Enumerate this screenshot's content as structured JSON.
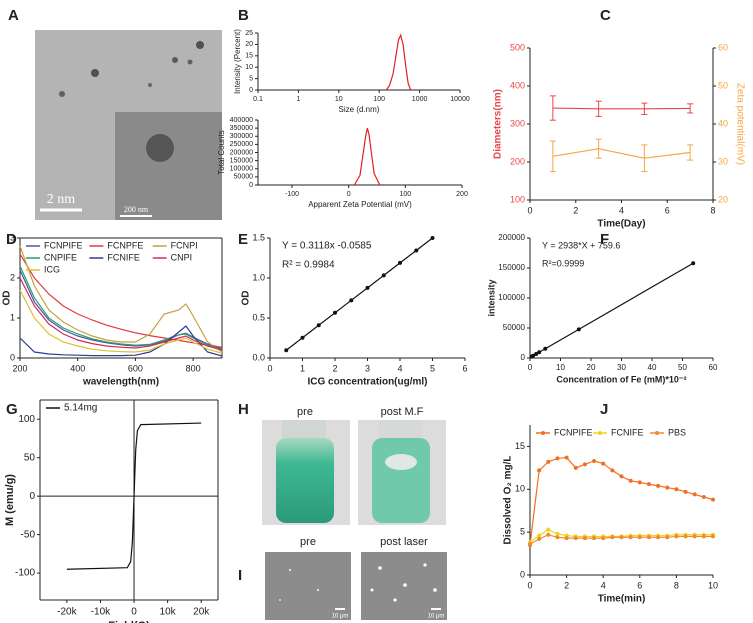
{
  "panel_labels": [
    "A",
    "B",
    "C",
    "D",
    "E",
    "F",
    "G",
    "H",
    "I",
    "J"
  ],
  "images": {
    "A": {
      "scale_bar": "2 nm",
      "inset_scale_bar": "200 nm"
    },
    "H": {
      "labels": [
        "pre",
        "post M.F"
      ]
    },
    "I": {
      "labels": [
        "pre",
        "post laser"
      ],
      "scale_bars": [
        "10 μm",
        "10 μm"
      ]
    }
  },
  "chart_data": [
    {
      "type": "line",
      "xlabel": "Size (d.nm)",
      "ylabel": "Intensity (Percent)",
      "xscale": "log",
      "xlim": [
        0.1,
        10000
      ],
      "xticks": [
        0.1,
        1,
        10,
        100,
        1000,
        10000
      ],
      "ylim": [
        0,
        25
      ],
      "yticks": [
        0,
        5,
        10,
        15,
        20,
        25
      ],
      "frame": "open",
      "series": [
        {
          "color": "#e02020",
          "x": [
            150,
            180,
            220,
            260,
            300,
            340,
            390,
            450,
            520,
            600
          ],
          "values": [
            0,
            2,
            7,
            15,
            22,
            24,
            20,
            11,
            3,
            0
          ]
        }
      ]
    },
    {
      "type": "line",
      "xlabel": "Apparent Zeta Potential (mV)",
      "ylabel": "Total Counts",
      "xlim": [
        -160,
        200
      ],
      "xticks": [
        -100,
        0,
        100,
        200
      ],
      "ylim": [
        0,
        400000
      ],
      "yticks": [
        0,
        50000,
        100000,
        150000,
        200000,
        250000,
        300000,
        350000,
        400000
      ],
      "frame": "open",
      "series": [
        {
          "color": "#e02020",
          "x": [
            10,
            20,
            25,
            30,
            33,
            36,
            40,
            45,
            55
          ],
          "values": [
            0,
            60000,
            180000,
            300000,
            350000,
            310000,
            200000,
            70000,
            0
          ]
        }
      ]
    },
    {
      "type": "line",
      "xlabel": "Time(Day)",
      "ylabel": "Diameters(nm)",
      "y2label": "Zeta potential(mV)",
      "xlim": [
        0,
        8
      ],
      "xticks": [
        0,
        2,
        4,
        6,
        8
      ],
      "ylim": [
        100,
        500
      ],
      "yticks": [
        100,
        200,
        300,
        400,
        500
      ],
      "y2lim": [
        20,
        60
      ],
      "y2ticks": [
        20,
        30,
        40,
        50,
        60
      ],
      "frame": "open",
      "x": [
        1,
        3,
        5,
        7
      ],
      "series": [
        {
          "color": "#e8474a",
          "values": [
            342,
            340,
            340,
            341
          ],
          "errors": [
            32,
            20,
            15,
            12
          ]
        },
        {
          "color": "#f5a742",
          "axis": "y2",
          "values": [
            31.5,
            33.5,
            31,
            32.5
          ],
          "errors": [
            4,
            2.5,
            3.5,
            2
          ]
        }
      ]
    },
    {
      "type": "line",
      "xlabel": "wavelength(nm)",
      "ylabel": "OD",
      "xlim": [
        200,
        900
      ],
      "xticks": [
        200,
        400,
        600,
        800
      ],
      "ylim": [
        0,
        3
      ],
      "yticks": [
        0,
        1,
        2,
        3
      ],
      "frame": "box",
      "legend": "upper center",
      "legend_columns": 3,
      "x": [
        200,
        250,
        300,
        350,
        400,
        450,
        500,
        550,
        600,
        650,
        700,
        725,
        750,
        775,
        800,
        850,
        900
      ],
      "series": [
        {
          "name": "FCNPIFE",
          "color": "#4a5aa0",
          "values": [
            2.2,
            1.4,
            0.95,
            0.7,
            0.55,
            0.45,
            0.38,
            0.33,
            0.3,
            0.33,
            0.42,
            0.5,
            0.58,
            0.62,
            0.52,
            0.35,
            0.25
          ]
        },
        {
          "name": "FCNPFE",
          "color": "#e03a3a",
          "values": [
            2.6,
            2.0,
            1.6,
            1.3,
            1.1,
            0.95,
            0.82,
            0.72,
            0.63,
            0.56,
            0.5,
            0.47,
            0.44,
            0.41,
            0.38,
            0.32,
            0.27
          ]
        },
        {
          "name": "FCNPI",
          "color": "#c8a040",
          "values": [
            2.8,
            1.8,
            1.2,
            0.9,
            0.7,
            0.55,
            0.45,
            0.4,
            0.4,
            0.6,
            1.1,
            1.15,
            1.2,
            1.35,
            1.05,
            0.4,
            0.15
          ]
        },
        {
          "name": "CNPIFE",
          "color": "#2e9a6e",
          "values": [
            2.3,
            1.5,
            1.0,
            0.75,
            0.6,
            0.48,
            0.4,
            0.35,
            0.32,
            0.34,
            0.45,
            0.52,
            0.58,
            0.6,
            0.5,
            0.33,
            0.22
          ]
        },
        {
          "name": "FCNIFE",
          "color": "#2a3e9a",
          "values": [
            0.5,
            0.15,
            0.1,
            0.08,
            0.07,
            0.06,
            0.06,
            0.06,
            0.07,
            0.15,
            0.35,
            0.5,
            0.65,
            0.8,
            0.55,
            0.15,
            0.05
          ]
        },
        {
          "name": "CNPI",
          "color": "#d2285a",
          "values": [
            2.0,
            1.3,
            0.85,
            0.6,
            0.45,
            0.36,
            0.3,
            0.27,
            0.25,
            0.3,
            0.4,
            0.45,
            0.5,
            0.55,
            0.45,
            0.3,
            0.2
          ]
        },
        {
          "name": "ICG",
          "color": "#e0c030",
          "values": [
            1.7,
            1.0,
            0.6,
            0.4,
            0.3,
            0.22,
            0.18,
            0.16,
            0.15,
            0.2,
            0.35,
            0.4,
            0.45,
            0.5,
            0.4,
            0.22,
            0.12
          ]
        }
      ]
    },
    {
      "type": "line",
      "xlabel": "ICG concentration(ug/ml)",
      "ylabel": "OD",
      "xlim": [
        0,
        6
      ],
      "xticks": [
        0,
        1,
        2,
        3,
        4,
        5,
        6
      ],
      "ylim": [
        0,
        1.5
      ],
      "yticks": [
        {
          "value": 0,
          "label": "0.0"
        },
        0.5,
        {
          "value": 1,
          "label": "1.0"
        },
        1.5
      ],
      "frame": "open",
      "markers": true,
      "annotations": [
        "Y = 0.3118x -0.0585",
        "R² = 0.9984"
      ],
      "x": [
        0.5,
        1,
        1.5,
        2,
        2.5,
        3,
        3.5,
        4,
        4.5,
        5
      ],
      "series": [
        {
          "color": "#111111",
          "values": [
            0.097,
            0.253,
            0.409,
            0.565,
            0.721,
            0.877,
            1.033,
            1.189,
            1.344,
            1.5
          ]
        }
      ]
    },
    {
      "type": "line",
      "xlabel": "Concentration of Fe (mM)*10⁻²",
      "ylabel": "intensity",
      "xlim": [
        0,
        60
      ],
      "xticks": [
        0,
        10,
        20,
        30,
        40,
        50,
        60
      ],
      "ylim": [
        0,
        200000
      ],
      "yticks": [
        0,
        50000,
        100000,
        150000,
        200000
      ],
      "frame": "open",
      "markers": true,
      "annotations": [
        "Y = 2938*X + 759.6",
        "R²=0.9999"
      ],
      "x": [
        0.5,
        1,
        2,
        3,
        5,
        16,
        53.5
      ],
      "series": [
        {
          "color": "#111111",
          "values": [
            2229,
            3698,
            6636,
            9574,
            15450,
            47768,
            157943
          ]
        }
      ]
    },
    {
      "type": "line",
      "xlabel": "Field(G)",
      "ylabel": "M (emu/g)",
      "xlim": [
        -28000,
        25000
      ],
      "xticks": [
        {
          "value": -20000,
          "label": "-20k"
        },
        {
          "value": -10000,
          "label": "-10k"
        },
        0,
        {
          "value": 10000,
          "label": "10k"
        },
        {
          "value": 20000,
          "label": "20k"
        }
      ],
      "ylim": [
        -135,
        125
      ],
      "yticks": [
        -100,
        -50,
        0,
        50,
        100
      ],
      "frame": "box",
      "zero_lines": true,
      "legend": "upper left",
      "legend_columns": 1,
      "x": [
        -20000,
        -2000,
        -1000,
        -500,
        0,
        500,
        1000,
        2000,
        20000
      ],
      "series": [
        {
          "name": "5.14mg",
          "color": "#111111",
          "values": [
            -95,
            -93,
            -85,
            -60,
            0,
            60,
            85,
            93,
            95
          ]
        }
      ]
    },
    {
      "type": "line",
      "xlabel": "Time(min)",
      "ylabel": "Dissolved O₂  mg/L",
      "xlim": [
        0,
        10
      ],
      "xticks": [
        0,
        2,
        4,
        6,
        8,
        10
      ],
      "ylim": [
        0,
        17.5
      ],
      "yticks": [
        0,
        5,
        10,
        15
      ],
      "frame": "open",
      "markers": true,
      "legend": "upper center",
      "legend_columns": 3,
      "x": [
        0,
        0.5,
        1,
        1.5,
        2,
        2.5,
        3,
        3.5,
        4,
        4.5,
        5,
        5.5,
        6,
        6.5,
        7,
        7.5,
        8,
        8.5,
        9,
        9.5,
        10
      ],
      "series": [
        {
          "name": "FCNPIFE",
          "color": "#f07020",
          "values": [
            3.5,
            12.2,
            13.2,
            13.6,
            13.7,
            12.5,
            12.9,
            13.3,
            13.0,
            12.2,
            11.5,
            11.0,
            10.8,
            10.6,
            10.4,
            10.2,
            10.0,
            9.7,
            9.4,
            9.1,
            8.8
          ]
        },
        {
          "name": "FCNIFE",
          "color": "#f0d020",
          "values": [
            3.8,
            4.6,
            5.3,
            4.8,
            4.6,
            4.5,
            4.5,
            4.5,
            4.5,
            4.5,
            4.5,
            4.6,
            4.6,
            4.6,
            4.6,
            4.6,
            4.7,
            4.7,
            4.7,
            4.7,
            4.7
          ]
        },
        {
          "name": "PBS",
          "color": "#f08a30",
          "values": [
            3.6,
            4.2,
            4.7,
            4.4,
            4.3,
            4.3,
            4.3,
            4.3,
            4.3,
            4.4,
            4.4,
            4.4,
            4.4,
            4.4,
            4.4,
            4.4,
            4.5,
            4.5,
            4.5,
            4.5,
            4.5
          ]
        }
      ]
    }
  ]
}
